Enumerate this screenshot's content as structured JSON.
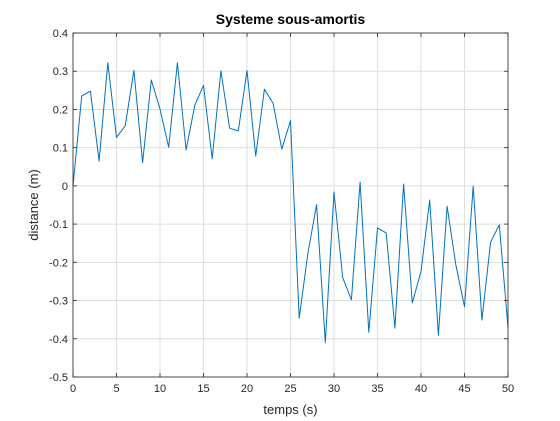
{
  "chart_data": {
    "type": "line",
    "title": "Systeme sous-amortis",
    "xlabel": "temps (s)",
    "ylabel": "distance (m)",
    "xlim": [
      0,
      50
    ],
    "ylim": [
      -0.5,
      0.4
    ],
    "xticks": [
      0,
      5,
      10,
      15,
      20,
      25,
      30,
      35,
      40,
      45,
      50
    ],
    "yticks": [
      -0.5,
      -0.4,
      -0.3,
      -0.2,
      -0.1,
      0,
      0.1,
      0.2,
      0.3,
      0.4
    ],
    "xtick_labels": [
      "0",
      "5",
      "10",
      "15",
      "20",
      "25",
      "30",
      "35",
      "40",
      "45",
      "50"
    ],
    "ytick_labels": [
      "-0.5",
      "-0.4",
      "-0.3",
      "-0.2",
      "-0.1",
      "0",
      "0.1",
      "0.2",
      "0.3",
      "0.4"
    ],
    "grid": true,
    "series": [
      {
        "color": "#0072bd",
        "x": [
          0,
          1,
          2,
          3,
          4,
          5,
          6,
          7,
          8,
          9,
          10,
          11,
          12,
          13,
          14,
          15,
          16,
          17,
          18,
          19,
          20,
          21,
          22,
          23,
          24,
          25,
          26,
          27,
          28,
          29,
          30,
          31,
          32,
          33,
          34,
          35,
          36,
          37,
          38,
          39,
          40,
          41,
          42,
          43,
          44,
          45,
          46,
          47,
          48,
          49,
          50
        ],
        "y": [
          0,
          0.235,
          0.248,
          0.065,
          0.322,
          0.127,
          0.157,
          0.302,
          0.061,
          0.277,
          0.201,
          0.101,
          0.322,
          0.094,
          0.211,
          0.263,
          0.071,
          0.301,
          0.151,
          0.144,
          0.302,
          0.078,
          0.253,
          0.216,
          0.096,
          0.171,
          -0.346,
          -0.176,
          -0.049,
          -0.41,
          -0.016,
          -0.24,
          -0.298,
          0.01,
          -0.383,
          -0.11,
          -0.123,
          -0.372,
          0.005,
          -0.306,
          -0.224,
          -0.037,
          -0.391,
          -0.053,
          -0.206,
          -0.316,
          -0.001,
          -0.351,
          -0.147,
          -0.102,
          -0.37
        ]
      }
    ]
  }
}
